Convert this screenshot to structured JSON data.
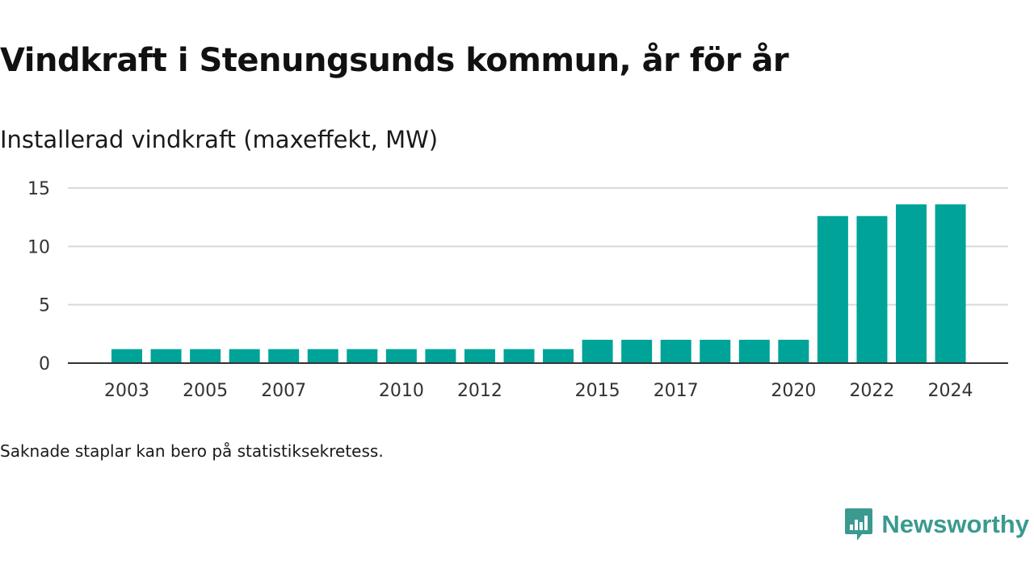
{
  "title": "Vindkraft i Stenungsunds kommun, år för år",
  "subtitle": "Installerad vindkraft (maxeffekt, MW)",
  "footnote": "Saknade staplar kan bero på statistiksekretess.",
  "brand": {
    "name": "Newsworthy",
    "color": "#3a9a8f"
  },
  "chart_data": {
    "type": "bar",
    "categories": [
      "2003",
      "2004",
      "2005",
      "2006",
      "2007",
      "2008",
      "2009",
      "2010",
      "2011",
      "2012",
      "2013",
      "2014",
      "2015",
      "2016",
      "2017",
      "2018",
      "2019",
      "2020",
      "2021",
      "2022",
      "2023",
      "2024"
    ],
    "values": [
      1.2,
      1.2,
      1.2,
      1.2,
      1.2,
      1.2,
      1.2,
      1.2,
      1.2,
      1.2,
      1.2,
      1.2,
      2.0,
      2.0,
      2.0,
      2.0,
      2.0,
      2.0,
      12.6,
      12.6,
      13.6,
      13.6
    ],
    "x_tick_labels": [
      "2003",
      "2005",
      "2007",
      "2010",
      "2012",
      "2015",
      "2017",
      "2020",
      "2022",
      "2024"
    ],
    "y_ticks": [
      0,
      5,
      10,
      15
    ],
    "ylim": [
      0,
      15
    ],
    "grid": true,
    "legend": "none",
    "bar_color": "#00a398"
  }
}
